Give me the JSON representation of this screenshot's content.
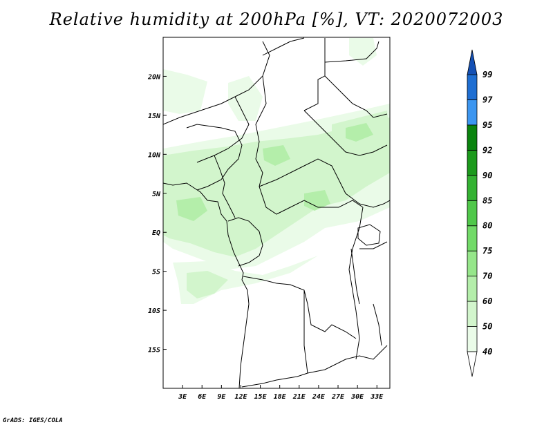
{
  "title": "Relative humidity at 200hPa [%], VT: 2020072003",
  "footer": "GrADS: IGES/COLA",
  "map": {
    "lon_ticks": [
      "3E",
      "6E",
      "9E",
      "12E",
      "15E",
      "18E",
      "21E",
      "24E",
      "27E",
      "30E",
      "33E"
    ],
    "lat_ticks": [
      "20N",
      "15N",
      "10N",
      "5N",
      "EQ",
      "5S",
      "10S",
      "15S"
    ],
    "extent": {
      "lon_min": 0,
      "lon_max": 35,
      "lat_min": -20,
      "lat_max": 25
    }
  },
  "colorbar": {
    "levels": [
      "40",
      "50",
      "60",
      "70",
      "75",
      "80",
      "85",
      "90",
      "92",
      "95",
      "97",
      "99"
    ],
    "colors": [
      "#ffffff",
      "#eafbe8",
      "#d2f5cc",
      "#b4eeaa",
      "#96e68a",
      "#72da68",
      "#50c84a",
      "#34b232",
      "#1c9a1c",
      "#0a840e",
      "#3c96f0",
      "#1e6ed2",
      "#1450b4"
    ]
  },
  "chart_data": {
    "type": "heatmap",
    "title": "Relative humidity at 200hPa [%], VT: 2020072003",
    "variable": "Relative humidity",
    "units": "%",
    "level": "200hPa",
    "valid_time": "2020072003",
    "x_ticks": [
      "3E",
      "6E",
      "9E",
      "12E",
      "15E",
      "18E",
      "21E",
      "24E",
      "27E",
      "30E",
      "33E"
    ],
    "y_ticks": [
      "20N",
      "15N",
      "10N",
      "5N",
      "EQ",
      "5S",
      "10S",
      "15S"
    ],
    "contour_levels": [
      40,
      50,
      60,
      70,
      75,
      80,
      85,
      90,
      92,
      95,
      97,
      99
    ],
    "max_shaded_range": "50-70"
  }
}
